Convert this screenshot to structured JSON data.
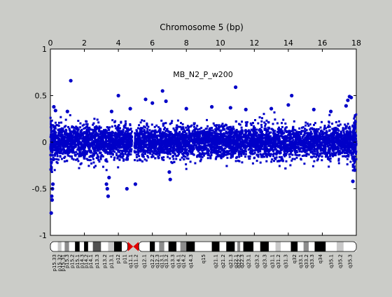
{
  "chart_data": {
    "type": "scatter",
    "title": "Chromosome 5 (bp)",
    "annotation": "MB_N2_P_w200",
    "x_axis": {
      "position": "top",
      "range": [
        0,
        18
      ],
      "ticks": [
        "0",
        "2",
        "4",
        "6",
        "8",
        "10",
        "12",
        "14",
        "16",
        "18"
      ]
    },
    "y_axis": {
      "range": [
        -1,
        1
      ],
      "ticks": [
        "-1",
        "-0.5",
        "0",
        "0.5",
        "1"
      ]
    },
    "grid": false,
    "series_color": "#0000c8",
    "zero_line_color": "#9aa0c8",
    "centromere_gap": [
      4.8,
      4.95
    ],
    "density_profile": [
      {
        "start": 0,
        "end": 0.1,
        "points": 60,
        "sd": 0.18
      },
      {
        "start": 0.1,
        "end": 4.8,
        "points": 1500,
        "sd": 0.09
      },
      {
        "start": 4.95,
        "end": 17.8,
        "points": 4200,
        "sd": 0.085
      },
      {
        "start": 17.8,
        "end": 18,
        "points": 120,
        "sd": 0.14
      }
    ],
    "outliers": [
      {
        "x": 0.05,
        "y": -0.76
      },
      {
        "x": 0.08,
        "y": -0.58
      },
      {
        "x": 0.1,
        "y": -0.62
      },
      {
        "x": 0.12,
        "y": -0.5
      },
      {
        "x": 0.15,
        "y": -0.45
      },
      {
        "x": 0.2,
        "y": 0.38
      },
      {
        "x": 0.3,
        "y": 0.34
      },
      {
        "x": 1.2,
        "y": 0.66
      },
      {
        "x": 1.0,
        "y": 0.33
      },
      {
        "x": 3.3,
        "y": -0.45
      },
      {
        "x": 3.35,
        "y": -0.5
      },
      {
        "x": 3.4,
        "y": -0.58
      },
      {
        "x": 3.45,
        "y": -0.38
      },
      {
        "x": 3.6,
        "y": 0.33
      },
      {
        "x": 4.0,
        "y": 0.5
      },
      {
        "x": 4.5,
        "y": -0.5
      },
      {
        "x": 4.7,
        "y": 0.36
      },
      {
        "x": 5.6,
        "y": 0.46
      },
      {
        "x": 5.0,
        "y": -0.45
      },
      {
        "x": 6.0,
        "y": 0.42
      },
      {
        "x": 6.6,
        "y": 0.55
      },
      {
        "x": 6.8,
        "y": 0.44
      },
      {
        "x": 7.0,
        "y": -0.32
      },
      {
        "x": 7.05,
        "y": -0.4
      },
      {
        "x": 8.0,
        "y": 0.36
      },
      {
        "x": 9.5,
        "y": 0.38
      },
      {
        "x": 10.9,
        "y": 0.59
      },
      {
        "x": 10.6,
        "y": 0.37
      },
      {
        "x": 11.5,
        "y": 0.35
      },
      {
        "x": 13.0,
        "y": 0.36
      },
      {
        "x": 14.2,
        "y": 0.5
      },
      {
        "x": 14.0,
        "y": 0.4
      },
      {
        "x": 15.5,
        "y": 0.35
      },
      {
        "x": 16.5,
        "y": 0.33
      },
      {
        "x": 17.5,
        "y": 0.45
      },
      {
        "x": 17.6,
        "y": 0.49
      },
      {
        "x": 17.7,
        "y": 0.48
      },
      {
        "x": 17.4,
        "y": 0.39
      },
      {
        "x": 17.8,
        "y": -0.42
      },
      {
        "x": 17.9,
        "y": -0.3
      }
    ]
  },
  "ideogram": {
    "length": 18,
    "centromere": 4.87,
    "bands": [
      {
        "name": "p15.33",
        "start": 0.0,
        "end": 0.44,
        "stain": "gneg"
      },
      {
        "name": "p15.32",
        "start": 0.44,
        "end": 0.65,
        "stain": "gpos25"
      },
      {
        "name": "p15.31",
        "start": 0.65,
        "end": 0.84,
        "stain": "gneg"
      },
      {
        "name": "p15.3",
        "start": 0.84,
        "end": 1.1,
        "stain": "gpos50"
      },
      {
        "name": "p15.2",
        "start": 1.1,
        "end": 1.45,
        "stain": "gneg"
      },
      {
        "name": "p15.1",
        "start": 1.45,
        "end": 1.72,
        "stain": "gpos100"
      },
      {
        "name": "p14.3",
        "start": 1.72,
        "end": 1.98,
        "stain": "gneg"
      },
      {
        "name": "p14.2",
        "start": 1.98,
        "end": 2.22,
        "stain": "gpos100"
      },
      {
        "name": "p14.1",
        "start": 2.22,
        "end": 2.5,
        "stain": "gneg"
      },
      {
        "name": "p13.3",
        "start": 2.5,
        "end": 2.98,
        "stain": "gpos75"
      },
      {
        "name": "p13.2",
        "start": 2.98,
        "end": 3.4,
        "stain": "gneg"
      },
      {
        "name": "p13.1",
        "start": 3.4,
        "end": 3.75,
        "stain": "gpos25"
      },
      {
        "name": "p12",
        "start": 3.75,
        "end": 4.2,
        "stain": "gpos100"
      },
      {
        "name": "p11",
        "start": 4.2,
        "end": 4.55,
        "stain": "gneg"
      },
      {
        "name": "q11.1",
        "start": 4.55,
        "end": 4.87,
        "stain": "acen"
      },
      {
        "name": "q11.2",
        "start": 4.87,
        "end": 5.2,
        "stain": "acen"
      },
      {
        "name": "q12.1",
        "start": 5.2,
        "end": 5.85,
        "stain": "gneg"
      },
      {
        "name": "q12.2",
        "start": 5.85,
        "end": 6.15,
        "stain": "gpos100"
      },
      {
        "name": "q12.3",
        "start": 6.15,
        "end": 6.4,
        "stain": "gneg"
      },
      {
        "name": "q13.1",
        "start": 6.4,
        "end": 6.7,
        "stain": "gpos50"
      },
      {
        "name": "q13.2",
        "start": 6.7,
        "end": 6.95,
        "stain": "gneg"
      },
      {
        "name": "q13.3",
        "start": 6.95,
        "end": 7.42,
        "stain": "gpos100"
      },
      {
        "name": "q14.1",
        "start": 7.42,
        "end": 7.65,
        "stain": "gneg"
      },
      {
        "name": "q14.2",
        "start": 7.65,
        "end": 8.0,
        "stain": "gpos50"
      },
      {
        "name": "q14.3",
        "start": 8.0,
        "end": 8.5,
        "stain": "gpos100"
      },
      {
        "name": "q15",
        "start": 8.5,
        "end": 9.5,
        "stain": "gneg"
      },
      {
        "name": "q21.1",
        "start": 9.5,
        "end": 9.95,
        "stain": "gpos100"
      },
      {
        "name": "q21.2",
        "start": 9.95,
        "end": 10.35,
        "stain": "gneg"
      },
      {
        "name": "q21.3",
        "start": 10.35,
        "end": 10.85,
        "stain": "gpos100"
      },
      {
        "name": "q22.1",
        "start": 10.85,
        "end": 11.0,
        "stain": "gneg"
      },
      {
        "name": "q22.2",
        "start": 11.0,
        "end": 11.17,
        "stain": "gpos50"
      },
      {
        "name": "q22.3",
        "start": 11.17,
        "end": 11.35,
        "stain": "gneg"
      },
      {
        "name": "q23.1",
        "start": 11.35,
        "end": 11.95,
        "stain": "gpos100"
      },
      {
        "name": "q23.2",
        "start": 11.95,
        "end": 12.35,
        "stain": "gneg"
      },
      {
        "name": "q23.3",
        "start": 12.35,
        "end": 12.85,
        "stain": "gpos100"
      },
      {
        "name": "q31.1",
        "start": 12.85,
        "end": 13.25,
        "stain": "gneg"
      },
      {
        "name": "q31.2",
        "start": 13.25,
        "end": 13.55,
        "stain": "gpos25"
      },
      {
        "name": "q31.3",
        "start": 13.55,
        "end": 14.15,
        "stain": "gneg"
      },
      {
        "name": "q32",
        "start": 14.15,
        "end": 14.55,
        "stain": "gpos100"
      },
      {
        "name": "q33.1",
        "start": 14.55,
        "end": 14.9,
        "stain": "gneg"
      },
      {
        "name": "q33.2",
        "start": 14.9,
        "end": 15.2,
        "stain": "gpos50"
      },
      {
        "name": "q33.3",
        "start": 15.2,
        "end": 15.55,
        "stain": "gneg"
      },
      {
        "name": "q34",
        "start": 15.55,
        "end": 16.2,
        "stain": "gpos100"
      },
      {
        "name": "q35.1",
        "start": 16.2,
        "end": 16.85,
        "stain": "gneg"
      },
      {
        "name": "q35.2",
        "start": 16.85,
        "end": 17.25,
        "stain": "gpos25"
      },
      {
        "name": "q35.3",
        "start": 17.25,
        "end": 18.0,
        "stain": "gneg"
      }
    ]
  }
}
